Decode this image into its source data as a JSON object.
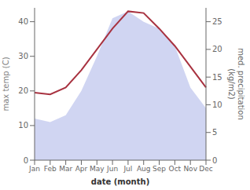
{
  "chart_data": {
    "type": "line",
    "xlabel": "date (month)",
    "ylabel": "max temp (C)",
    "y2label": "med. precipitation\n(kg/m2)",
    "categories": [
      "Jan",
      "Feb",
      "Mar",
      "Apr",
      "May",
      "Jun",
      "Jul",
      "Aug",
      "Sep",
      "Oct",
      "Nov",
      "Dec"
    ],
    "series": [
      {
        "type": "area",
        "color": "#c8cef0",
        "values": [
          12.0,
          11.0,
          13.0,
          20.0,
          30.0,
          41.0,
          43.0,
          40.0,
          38.0,
          33.0,
          21.0,
          15.0
        ]
      },
      {
        "type": "line",
        "color": "#a83240",
        "values": [
          19.5,
          19.0,
          21.0,
          26.0,
          32.0,
          38.0,
          43.0,
          42.5,
          38.0,
          33.0,
          27.0,
          21.0
        ]
      }
    ],
    "ylim": [
      0,
      44
    ],
    "yticks": [
      0,
      10,
      20,
      30,
      40
    ],
    "y2lim": [
      0,
      27.5
    ],
    "y2ticks": [
      0,
      5,
      10,
      15,
      20,
      25
    ],
    "grid": false
  }
}
